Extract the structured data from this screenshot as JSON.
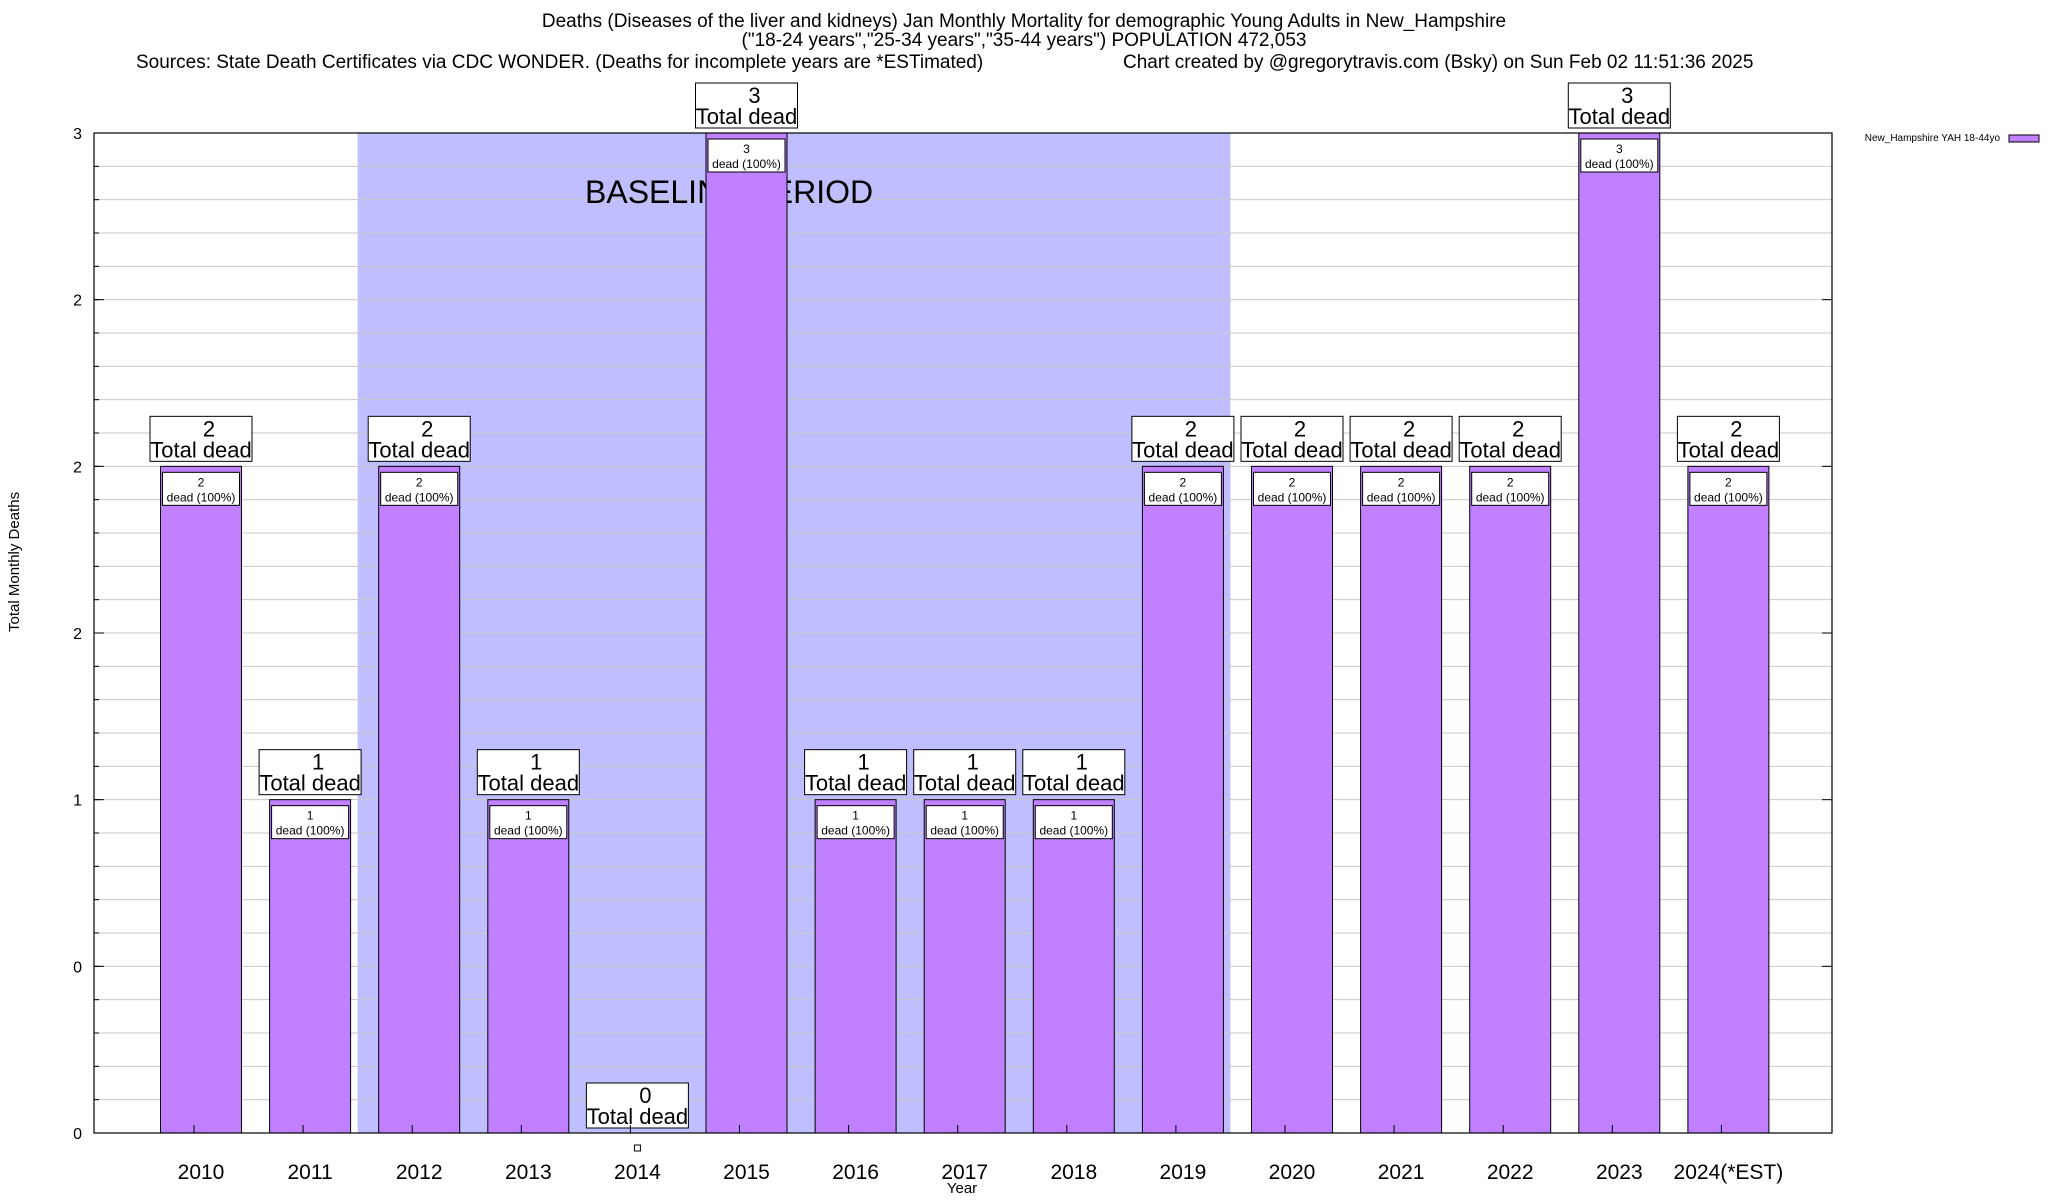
{
  "chart_data": {
    "type": "bar",
    "title_lines": [
      "Deaths (Diseases of the liver and kidneys) Jan Monthly Mortality for demographic Young Adults in New_Hampshire",
      "(\"18-24 years\",\"25-34 years\",\"35-44 years\") POPULATION 472,053"
    ],
    "sources_left": "Sources: State Death Certificates via CDC WONDER. (Deaths for incomplete years are *ESTimated)",
    "sources_right": "Chart created by @gregorytravis.com (Bsky) on Sun Feb 02 11:51:36 2025",
    "xlabel": "Year",
    "ylabel": "Total Monthly Deaths",
    "ylim": [
      0,
      3
    ],
    "y_tick_values": [
      0,
      0.5,
      1,
      1.5,
      2,
      2.5,
      3
    ],
    "y_tick_labels": [
      "0",
      "0",
      "1",
      "2",
      "2",
      "2",
      "3"
    ],
    "grid": true,
    "categories": [
      "2010",
      "2011",
      "2012",
      "2013",
      "2014",
      "2015",
      "2016",
      "2017",
      "2018",
      "2019",
      "2020",
      "2021",
      "2022",
      "2023",
      "2024(*EST)"
    ],
    "series": [
      {
        "name": "New_Hampshire YAH 18-44yo",
        "color": "#c080ff",
        "values": [
          2,
          1,
          2,
          1,
          0,
          3,
          1,
          1,
          1,
          2,
          2,
          2,
          2,
          3,
          2
        ]
      }
    ],
    "bar_labels_top": "Total dead",
    "bar_labels_inner_suffix": "dead (100%)",
    "baseline_period": {
      "label": "BASELINE PERIOD",
      "start": "2012",
      "end": "2019",
      "color": "#bfbfff"
    },
    "legend_position": "top-right"
  }
}
